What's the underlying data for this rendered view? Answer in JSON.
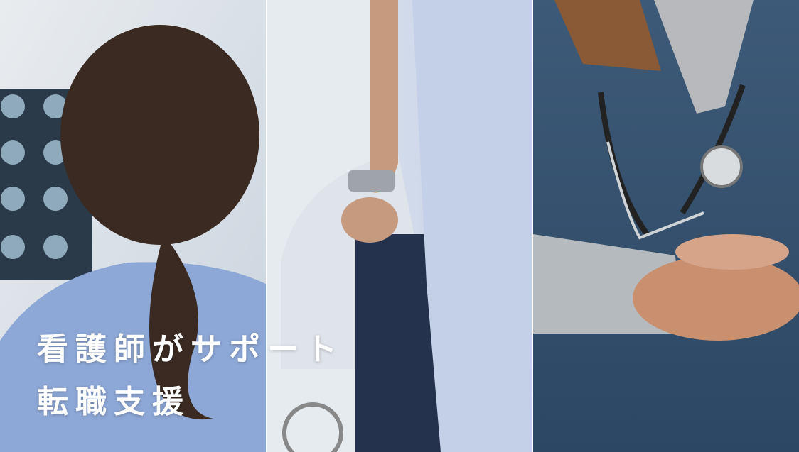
{
  "hero": {
    "lines": [
      "看護師がサポート",
      "転職支援"
    ]
  }
}
